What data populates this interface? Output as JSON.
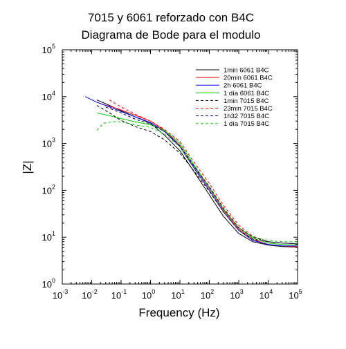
{
  "chart_data": {
    "type": "line",
    "title": [
      "7015 y 6061 reforzado con B4C",
      "Diagrama de Bode para el modulo"
    ],
    "xlabel": "Frequency (Hz)",
    "ylabel": "|Z|",
    "x_scale": "log",
    "y_scale": "log",
    "xlim": [
      0.001,
      100000
    ],
    "ylim": [
      1,
      100000
    ],
    "x_ticks": [
      {
        "base": "10",
        "exp": "-3",
        "value": 0.001
      },
      {
        "base": "10",
        "exp": "-2",
        "value": 0.01
      },
      {
        "base": "10",
        "exp": "-1",
        "value": 0.1
      },
      {
        "base": "10",
        "exp": "0",
        "value": 1
      },
      {
        "base": "10",
        "exp": "1",
        "value": 10
      },
      {
        "base": "10",
        "exp": "2",
        "value": 100
      },
      {
        "base": "10",
        "exp": "3",
        "value": 1000
      },
      {
        "base": "10",
        "exp": "4",
        "value": 10000
      },
      {
        "base": "10",
        "exp": "5",
        "value": 100000
      }
    ],
    "y_ticks": [
      {
        "base": "10",
        "exp": "0",
        "value": 1
      },
      {
        "base": "10",
        "exp": "1",
        "value": 10
      },
      {
        "base": "10",
        "exp": "2",
        "value": 100
      },
      {
        "base": "10",
        "exp": "3",
        "value": 1000
      },
      {
        "base": "10",
        "exp": "4",
        "value": 10000
      },
      {
        "base": "10",
        "exp": "5",
        "value": 100000
      }
    ],
    "grid": false,
    "legend_position": "top-right",
    "series": [
      {
        "name": "1min 6061 B4C",
        "color": "#000000",
        "dash": "solid",
        "x": [
          0.015,
          0.04,
          0.1,
          0.3,
          1,
          3,
          10,
          30,
          100,
          300,
          1000,
          3000,
          10000,
          30000,
          100000
        ],
        "y": [
          8500,
          6500,
          5000,
          3700,
          2700,
          1500,
          700,
          250,
          80,
          28,
          12,
          8,
          6.8,
          6.3,
          6.1
        ]
      },
      {
        "name": "20min 6061 B4C",
        "color": "#ff0000",
        "dash": "solid",
        "x": [
          0.02,
          0.05,
          0.1,
          0.3,
          1,
          3,
          10,
          30,
          100,
          300,
          1000,
          3000,
          10000,
          30000,
          100000
        ],
        "y": [
          7000,
          6000,
          5200,
          4000,
          3000,
          1900,
          900,
          320,
          110,
          38,
          15,
          9,
          7,
          6.5,
          6.2
        ]
      },
      {
        "name": "2h 6061 B4C",
        "color": "#0000ff",
        "dash": "solid",
        "x": [
          0.006,
          0.015,
          0.04,
          0.1,
          0.3,
          1,
          3,
          10,
          30,
          100,
          300,
          1000,
          3000,
          10000,
          30000,
          100000
        ],
        "y": [
          10000,
          7600,
          6000,
          4800,
          3700,
          2800,
          1800,
          850,
          300,
          100,
          35,
          14,
          8.5,
          7,
          6.5,
          6.5
        ]
      },
      {
        "name": "1 día 6061 B4C",
        "color": "#00cc00",
        "dash": "solid",
        "x": [
          0.015,
          0.04,
          0.1,
          0.3,
          1,
          3,
          10,
          30,
          100,
          300,
          1000,
          3000,
          10000,
          30000,
          100000
        ],
        "y": [
          4500,
          3900,
          3400,
          2900,
          2500,
          1900,
          1000,
          350,
          115,
          40,
          16,
          9.5,
          7.5,
          7,
          6.8
        ]
      },
      {
        "name": "1min 7015 B4C",
        "color": "#000000",
        "dash": "dashed",
        "x": [
          0.015,
          0.04,
          0.1,
          0.3,
          1,
          3,
          10,
          30,
          100,
          300,
          1000,
          3000,
          10000,
          30000,
          100000
        ],
        "y": [
          6500,
          4500,
          3100,
          2300,
          1800,
          1200,
          620,
          260,
          95,
          35,
          14,
          9,
          8,
          7.5,
          7.2
        ]
      },
      {
        "name": "23min 7015 B4C",
        "color": "#ff0000",
        "dash": "dashed",
        "x": [
          0.04,
          0.1,
          0.3,
          1,
          3,
          10,
          30,
          100,
          300,
          1000,
          3000,
          10000,
          30000,
          100000
        ],
        "y": [
          8500,
          6000,
          4200,
          3000,
          2000,
          1100,
          400,
          140,
          48,
          18,
          10.5,
          8,
          7.5,
          7.3
        ]
      },
      {
        "name": "1h32 7015 B4C",
        "color": "#000066",
        "dash": "dashed",
        "x": [
          0.03,
          0.1,
          0.3,
          1,
          3,
          10,
          30,
          100,
          300,
          1000,
          3000,
          10000,
          30000,
          100000
        ],
        "y": [
          6000,
          4500,
          3300,
          2600,
          1800,
          900,
          330,
          120,
          42,
          16,
          10,
          8,
          7.5,
          7.2
        ]
      },
      {
        "name": "1 día 7015 B4C",
        "color": "#00cc00",
        "dash": "dashed",
        "x": [
          0.015,
          0.025,
          0.05,
          0.1,
          0.3,
          1,
          3,
          10,
          30,
          100,
          300,
          1000,
          3000,
          10000,
          30000,
          100000
        ],
        "y": [
          1900,
          2700,
          2900,
          2900,
          2500,
          2200,
          1600,
          850,
          320,
          115,
          40,
          16,
          10,
          8.5,
          8,
          8
        ]
      }
    ]
  }
}
